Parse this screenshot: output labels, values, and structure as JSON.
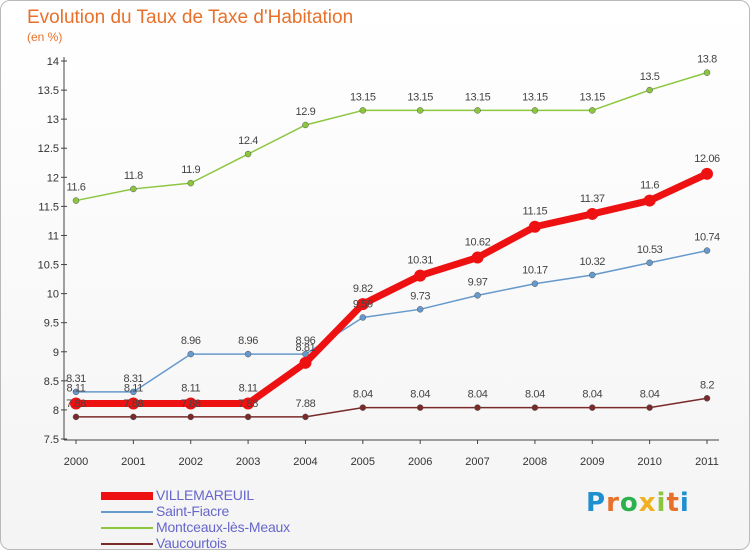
{
  "chart_data": {
    "type": "line",
    "title": "Evolution du Taux de Taxe d'Habitation",
    "unit_label": "(en %)",
    "x": [
      "2000",
      "2001",
      "2002",
      "2003",
      "2004",
      "2005",
      "2006",
      "2007",
      "2008",
      "2009",
      "2010",
      "2011"
    ],
    "ylim": [
      7.5,
      14
    ],
    "yticks": [
      "7.5",
      "8",
      "8.5",
      "9",
      "9.5",
      "10",
      "10.5",
      "11",
      "11.5",
      "12",
      "12.5",
      "13",
      "13.5",
      "14"
    ],
    "grid": false,
    "legend_position": "bottom-left",
    "series": [
      {
        "name": "Montceaux-lès-Meaux",
        "color": "#8cc63f",
        "width": 1.5,
        "marker": 3,
        "values": [
          11.6,
          11.8,
          11.9,
          12.4,
          12.9,
          13.15,
          13.15,
          13.15,
          13.15,
          13.15,
          13.5,
          13.8
        ],
        "labels": [
          "11.6",
          "11.8",
          "11.9",
          "12.4",
          "12.9",
          "13.15",
          "13.15",
          "13.15",
          "13.15",
          "13.15",
          "13.5",
          "13.8"
        ]
      },
      {
        "name": "Saint-Fiacre",
        "color": "#6699cc",
        "width": 1.5,
        "marker": 3,
        "values": [
          8.31,
          8.31,
          8.96,
          8.96,
          8.96,
          9.59,
          9.73,
          9.97,
          10.17,
          10.32,
          10.53,
          10.74
        ],
        "labels": [
          "8.31",
          "8.31",
          "8.96",
          "8.96",
          "8.96",
          "9.59",
          "9.73",
          "9.97",
          "10.17",
          "10.32",
          "10.53",
          "10.74"
        ]
      },
      {
        "name": "Vaucourtois",
        "color": "#7a2a2a",
        "width": 1.5,
        "marker": 3,
        "values": [
          7.88,
          7.88,
          7.88,
          7.88,
          7.88,
          8.04,
          8.04,
          8.04,
          8.04,
          8.04,
          8.04,
          8.2
        ],
        "labels": [
          "7.88",
          "7.88",
          "7.88",
          "7.88",
          "7.88",
          "8.04",
          "8.04",
          "8.04",
          "8.04",
          "8.04",
          "8.04",
          "8.2"
        ]
      },
      {
        "name": "VILLEMAREUIL",
        "color": "#ee1111",
        "width": 7,
        "marker": 6,
        "values": [
          8.11,
          8.11,
          8.11,
          8.11,
          8.81,
          9.82,
          10.31,
          10.62,
          11.15,
          11.37,
          11.6,
          12.06
        ],
        "labels": [
          "8.11",
          "8.11",
          "8.11",
          "8.11",
          "8.81",
          "9.82",
          "10.31",
          "10.62",
          "11.15",
          "11.37",
          "11.6",
          "12.06"
        ]
      }
    ],
    "legend_order": [
      "VILLEMAREUIL",
      "Saint-Fiacre",
      "Montceaux-lès-Meaux",
      "Vaucourtois"
    ]
  },
  "logo": {
    "letters": [
      "P",
      "r",
      "o",
      "x",
      "i",
      "t",
      "i"
    ],
    "colors": [
      "#1f8fd0",
      "#e8702a",
      "#2bb24c",
      "#f2b01e",
      "#8cc63f",
      "#e8702a",
      "#1f8fd0"
    ]
  }
}
